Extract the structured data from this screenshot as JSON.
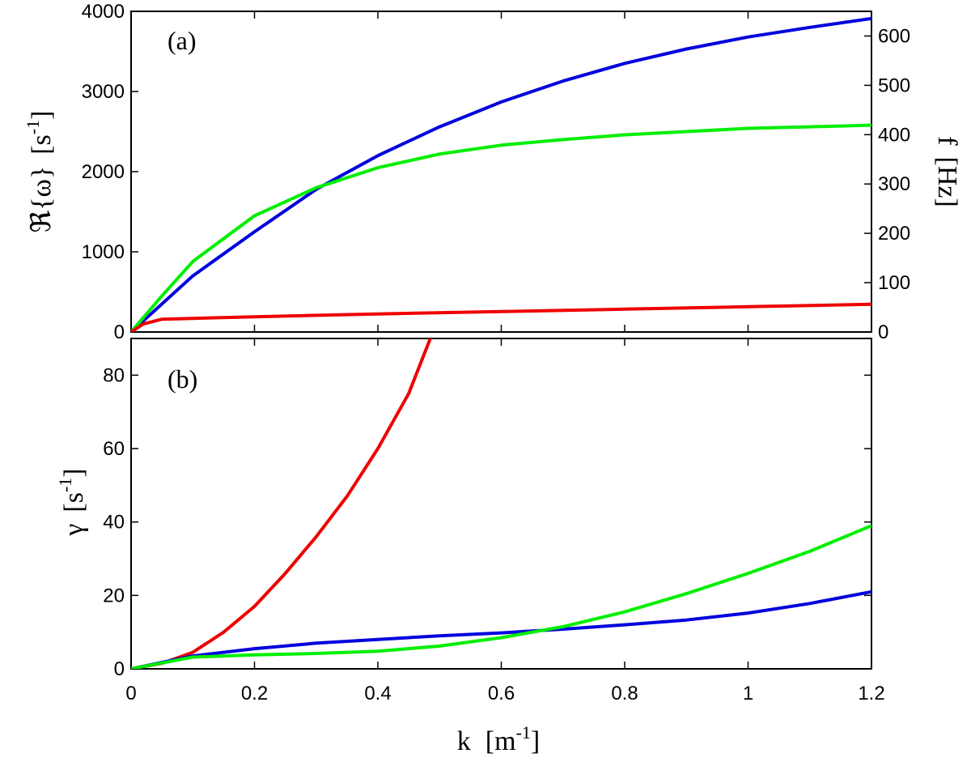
{
  "chart_data": [
    {
      "type": "line",
      "panel": "(a)",
      "ylabel_main": "ℜ{ω}",
      "ylabel_unit": "[s",
      "ylabel_exp": "-1",
      "ylabel_close": "]",
      "ylabel_right_main": "f",
      "ylabel_right_unit": "[Hz]",
      "xlim": [
        0,
        1.2
      ],
      "ylim": [
        0,
        4000
      ],
      "ylim_right": [
        0,
        650
      ],
      "yticks": [
        0,
        1000,
        2000,
        3000,
        4000
      ],
      "ytick_labels": [
        "0",
        "1000",
        "2000",
        "3000",
        "4000"
      ],
      "yticks_right": [
        0,
        100,
        200,
        300,
        400,
        500,
        600
      ],
      "ytick_labels_right": [
        "0",
        "100",
        "200",
        "300",
        "400",
        "500",
        "600"
      ],
      "series": [
        {
          "color": "#0000dd",
          "x": [
            0,
            0.05,
            0.1,
            0.2,
            0.3,
            0.4,
            0.5,
            0.6,
            0.7,
            0.8,
            0.9,
            1.0,
            1.1,
            1.2
          ],
          "y": [
            0,
            350,
            700,
            1250,
            1780,
            2200,
            2560,
            2870,
            3130,
            3350,
            3530,
            3680,
            3800,
            3910
          ]
        },
        {
          "color": "#00ee00",
          "x": [
            0,
            0.05,
            0.1,
            0.2,
            0.3,
            0.4,
            0.5,
            0.6,
            0.7,
            0.8,
            0.9,
            1.0,
            1.1,
            1.2
          ],
          "y": [
            0,
            450,
            880,
            1450,
            1800,
            2050,
            2220,
            2330,
            2400,
            2460,
            2500,
            2540,
            2560,
            2580
          ]
        },
        {
          "color": "#ee0000",
          "x": [
            0,
            0.02,
            0.05,
            0.1,
            0.2,
            0.4,
            0.6,
            0.8,
            1.0,
            1.2
          ],
          "y": [
            0,
            100,
            160,
            170,
            190,
            225,
            255,
            285,
            315,
            345
          ]
        }
      ]
    },
    {
      "type": "line",
      "panel": "(b)",
      "ylabel_main": "γ",
      "ylabel_unit": "[s",
      "ylabel_exp": "-1",
      "ylabel_close": "]",
      "xlabel_main": "k",
      "xlabel_unit": "[m",
      "xlabel_exp": "-1",
      "xlabel_close": "]",
      "xlim": [
        0,
        1.2
      ],
      "ylim": [
        0,
        90
      ],
      "xticks": [
        0,
        0.2,
        0.4,
        0.6,
        0.8,
        1,
        1.2
      ],
      "xtick_labels": [
        "0",
        "0.2",
        "0.4",
        "0.6",
        "0.8",
        "1",
        "1.2"
      ],
      "yticks": [
        0,
        20,
        40,
        60,
        80
      ],
      "ytick_labels": [
        "0",
        "20",
        "40",
        "60",
        "80"
      ],
      "series": [
        {
          "color": "#ee0000",
          "x": [
            0,
            0.05,
            0.1,
            0.15,
            0.2,
            0.25,
            0.3,
            0.35,
            0.4,
            0.45,
            0.485
          ],
          "y": [
            0,
            1.5,
            4.5,
            10,
            17,
            26,
            36,
            47,
            60,
            75,
            90
          ]
        },
        {
          "color": "#0000dd",
          "x": [
            0,
            0.1,
            0.2,
            0.3,
            0.4,
            0.5,
            0.6,
            0.7,
            0.8,
            0.9,
            1.0,
            1.1,
            1.2
          ],
          "y": [
            0,
            3.5,
            5.5,
            7,
            8,
            9,
            9.8,
            10.8,
            12,
            13.3,
            15.2,
            17.8,
            21
          ]
        },
        {
          "color": "#00ee00",
          "x": [
            0,
            0.1,
            0.2,
            0.3,
            0.4,
            0.5,
            0.6,
            0.7,
            0.8,
            0.9,
            1.0,
            1.1,
            1.2
          ],
          "y": [
            0,
            3.2,
            3.8,
            4.2,
            4.8,
            6.2,
            8.5,
            11.5,
            15.5,
            20.5,
            26,
            32,
            39
          ]
        }
      ]
    }
  ]
}
